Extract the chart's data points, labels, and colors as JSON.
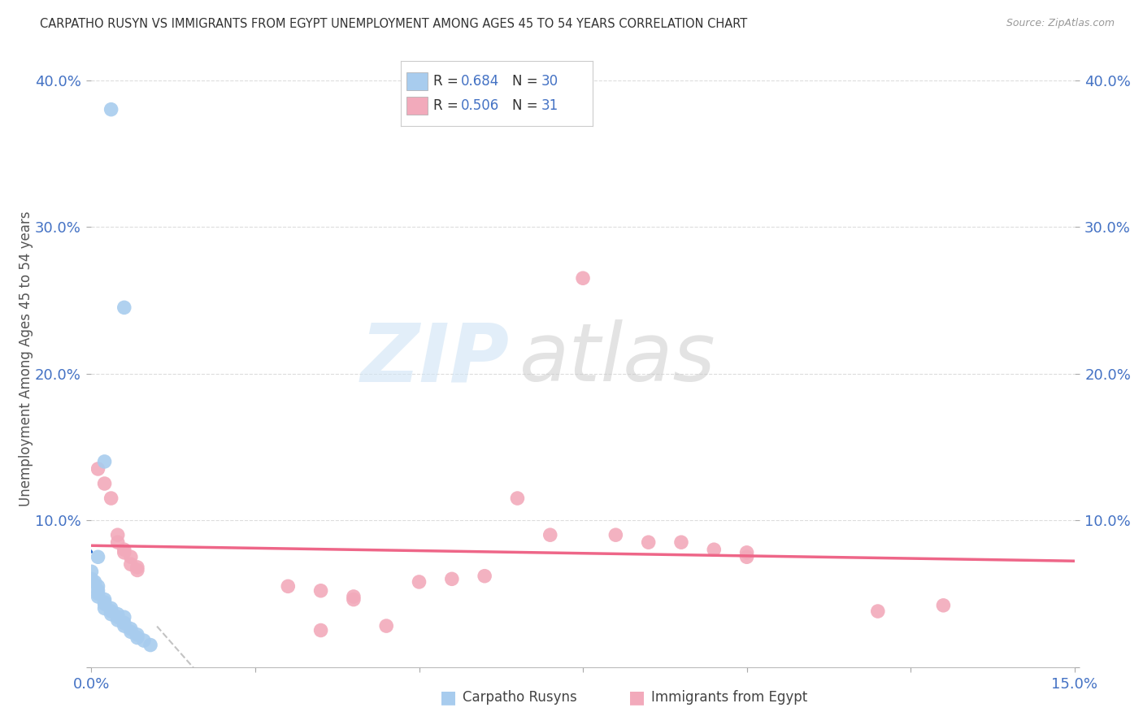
{
  "title": "CARPATHO RUSYN VS IMMIGRANTS FROM EGYPT UNEMPLOYMENT AMONG AGES 45 TO 54 YEARS CORRELATION CHART",
  "source": "Source: ZipAtlas.com",
  "ylabel": "Unemployment Among Ages 45 to 54 years",
  "xmin": 0.0,
  "xmax": 0.15,
  "ymin": 0.0,
  "ymax": 0.42,
  "xticks": [
    0.0,
    0.025,
    0.05,
    0.075,
    0.1,
    0.125,
    0.15
  ],
  "yticks": [
    0.0,
    0.1,
    0.2,
    0.3,
    0.4
  ],
  "ytick_labels_left": [
    "",
    "10.0%",
    "20.0%",
    "30.0%",
    "40.0%"
  ],
  "ytick_labels_right": [
    "",
    "10.0%",
    "20.0%",
    "30.0%",
    "40.0%"
  ],
  "xtick_labels": [
    "0.0%",
    "",
    "",
    "",
    "",
    "",
    "15.0%"
  ],
  "blue_R": 0.684,
  "blue_N": 30,
  "pink_R": 0.506,
  "pink_N": 31,
  "blue_color": "#A8CCEE",
  "pink_color": "#F2AABB",
  "blue_line_color": "#2266CC",
  "pink_line_color": "#EE6688",
  "blue_scatter": [
    [
      0.003,
      0.38
    ],
    [
      0.005,
      0.245
    ],
    [
      0.002,
      0.14
    ],
    [
      0.001,
      0.075
    ],
    [
      0.0,
      0.065
    ],
    [
      0.0,
      0.06
    ],
    [
      0.0005,
      0.058
    ],
    [
      0.001,
      0.055
    ],
    [
      0.001,
      0.052
    ],
    [
      0.001,
      0.05
    ],
    [
      0.001,
      0.048
    ],
    [
      0.002,
      0.046
    ],
    [
      0.002,
      0.044
    ],
    [
      0.002,
      0.043
    ],
    [
      0.002,
      0.04
    ],
    [
      0.003,
      0.04
    ],
    [
      0.003,
      0.038
    ],
    [
      0.003,
      0.036
    ],
    [
      0.004,
      0.036
    ],
    [
      0.004,
      0.034
    ],
    [
      0.005,
      0.034
    ],
    [
      0.004,
      0.032
    ],
    [
      0.005,
      0.03
    ],
    [
      0.005,
      0.028
    ],
    [
      0.006,
      0.026
    ],
    [
      0.006,
      0.024
    ],
    [
      0.007,
      0.022
    ],
    [
      0.007,
      0.02
    ],
    [
      0.008,
      0.018
    ],
    [
      0.009,
      0.015
    ]
  ],
  "pink_scatter": [
    [
      0.075,
      0.265
    ],
    [
      0.001,
      0.135
    ],
    [
      0.002,
      0.125
    ],
    [
      0.003,
      0.115
    ],
    [
      0.004,
      0.09
    ],
    [
      0.004,
      0.085
    ],
    [
      0.005,
      0.08
    ],
    [
      0.005,
      0.078
    ],
    [
      0.006,
      0.075
    ],
    [
      0.006,
      0.07
    ],
    [
      0.007,
      0.068
    ],
    [
      0.007,
      0.066
    ],
    [
      0.065,
      0.115
    ],
    [
      0.07,
      0.09
    ],
    [
      0.08,
      0.09
    ],
    [
      0.085,
      0.085
    ],
    [
      0.09,
      0.085
    ],
    [
      0.095,
      0.08
    ],
    [
      0.1,
      0.078
    ],
    [
      0.1,
      0.075
    ],
    [
      0.03,
      0.055
    ],
    [
      0.035,
      0.052
    ],
    [
      0.04,
      0.048
    ],
    [
      0.04,
      0.046
    ],
    [
      0.05,
      0.058
    ],
    [
      0.055,
      0.06
    ],
    [
      0.06,
      0.062
    ],
    [
      0.12,
      0.038
    ],
    [
      0.035,
      0.025
    ],
    [
      0.045,
      0.028
    ],
    [
      0.13,
      0.042
    ]
  ],
  "background_color": "#FFFFFF",
  "grid_color": "#DDDDDD",
  "tick_color": "#4472C4",
  "ylabel_color": "#555555",
  "title_color": "#333333",
  "source_color": "#999999",
  "watermark_zip_color": "#D0E4F5",
  "watermark_atlas_color": "#CCCCCC"
}
